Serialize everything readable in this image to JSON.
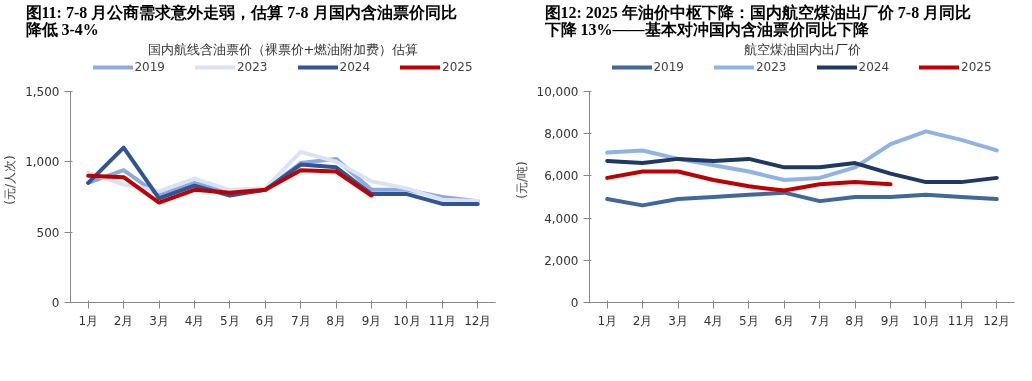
{
  "chart_data": [
    {
      "type": "line",
      "title": "图11:  7-8 月公商需求意外走弱，估算 7-8 月国内含油票价同比降低 3-4%",
      "subtitle": "国内航线含油票价（裸票价+燃油附加费）估算",
      "ylabel": "(元/人次)",
      "categories": [
        "1月",
        "2月",
        "3月",
        "4月",
        "5月",
        "6月",
        "7月",
        "8月",
        "9月",
        "10月",
        "11月",
        "12月"
      ],
      "series": [
        {
          "name": "2019",
          "color": "#8eaadb",
          "values": [
            850,
            940,
            760,
            850,
            780,
            800,
            990,
            1020,
            800,
            800,
            750,
            720
          ]
        },
        {
          "name": "2023",
          "color": "#dae3f3",
          "values": [
            920,
            840,
            790,
            880,
            800,
            810,
            1070,
            1000,
            860,
            810,
            730,
            720
          ]
        },
        {
          "name": "2024",
          "color": "#2f5597",
          "values": [
            850,
            1100,
            740,
            830,
            760,
            800,
            980,
            960,
            770,
            770,
            700,
            700
          ]
        },
        {
          "name": "2025",
          "color": "#c00000",
          "values": [
            900,
            890,
            710,
            800,
            780,
            800,
            940,
            930,
            760,
            null,
            null,
            null
          ]
        }
      ],
      "ylim": [
        0,
        1500
      ],
      "yticks": [
        0,
        {
          "value": 500,
          "label": "500"
        },
        {
          "value": 1000,
          "label": "1,000"
        },
        {
          "value": 1500,
          "label": "1,500"
        }
      ],
      "legend": "top",
      "grid": false
    },
    {
      "type": "line",
      "title": "图12:  2025 年油价中枢下降：国内航空煤油出厂价 7-8 月同比下降 13%——基本对冲国内含油票价同比下降",
      "subtitle": "航空煤油国内出厂价",
      "ylabel": "(元/吨)",
      "categories": [
        "1月",
        "2月",
        "3月",
        "4月",
        "5月",
        "6月",
        "7月",
        "8月",
        "9月",
        "10月",
        "11月",
        "12月"
      ],
      "series": [
        {
          "name": "2019",
          "color": "#41679b",
          "values": [
            4900,
            4600,
            4900,
            5000,
            5100,
            5200,
            4800,
            5000,
            5000,
            5100,
            5000,
            4900
          ]
        },
        {
          "name": "2023",
          "color": "#8fb4e3",
          "values": [
            7100,
            7200,
            6800,
            6500,
            6200,
            5800,
            5900,
            6400,
            7500,
            8100,
            7700,
            7200
          ]
        },
        {
          "name": "2024",
          "color": "#1f3864",
          "values": [
            6700,
            6600,
            6800,
            6700,
            6800,
            6400,
            6400,
            6600,
            6100,
            5700,
            5700,
            5900
          ]
        },
        {
          "name": "2025",
          "color": "#c00000",
          "values": [
            5900,
            6200,
            6200,
            5800,
            5500,
            5300,
            5600,
            5700,
            5600,
            null,
            null,
            null
          ]
        }
      ],
      "ylim": [
        0,
        10000
      ],
      "yticks": [
        0,
        {
          "value": 2000,
          "label": "2,000"
        },
        {
          "value": 4000,
          "label": "4,000"
        },
        {
          "value": 6000,
          "label": "6,000"
        },
        {
          "value": 8000,
          "label": "8,000"
        },
        {
          "value": 10000,
          "label": "10,000"
        }
      ],
      "legend": "top",
      "grid": false
    }
  ]
}
